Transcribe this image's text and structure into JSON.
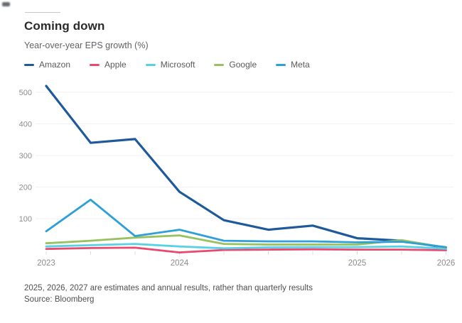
{
  "title": "Coming down",
  "subtitle": "Year-over-year EPS growth (%)",
  "legend": [
    {
      "label": "Amazon",
      "color": "#1e5a9b"
    },
    {
      "label": "Apple",
      "color": "#e9486f"
    },
    {
      "label": "Microsoft",
      "color": "#59d1e5"
    },
    {
      "label": "Google",
      "color": "#97c25f"
    },
    {
      "label": "Meta",
      "color": "#2f9fd9"
    }
  ],
  "footnote": {
    "line1": "2025, 2026, 2027 are estimates and annual results, rather than quarterly results",
    "line2": "Source: Bloomberg"
  },
  "chart_data": {
    "type": "line",
    "title": "Coming down",
    "ylabel": "Year-over-year EPS growth (%)",
    "xlabel": "",
    "grid": "horizontal-only",
    "legend_position": "top",
    "ylim": [
      -20,
      540
    ],
    "y_ticks": [
      100,
      200,
      300,
      400,
      500
    ],
    "x_point_count": 10,
    "x_tick_labels": [
      {
        "index": 0,
        "label": "2023"
      },
      {
        "index": 3,
        "label": "2024"
      },
      {
        "index": 7,
        "label": "2025"
      },
      {
        "index": 9,
        "label": "2026"
      }
    ],
    "series": [
      {
        "name": "Amazon",
        "color": "#1e5a9b",
        "values": [
          520,
          340,
          352,
          185,
          95,
          65,
          78,
          38,
          30,
          8
        ]
      },
      {
        "name": "Apple",
        "color": "#e9486f",
        "values": [
          4,
          7,
          8,
          -7,
          1,
          2,
          3,
          2,
          2,
          0
        ]
      },
      {
        "name": "Microsoft",
        "color": "#59d1e5",
        "values": [
          12,
          16,
          20,
          12,
          6,
          9,
          10,
          10,
          12,
          5
        ]
      },
      {
        "name": "Google",
        "color": "#97c25f",
        "values": [
          22,
          30,
          40,
          47,
          20,
          18,
          18,
          18,
          32,
          8
        ]
      },
      {
        "name": "Meta",
        "color": "#2f9fd9",
        "values": [
          60,
          160,
          45,
          65,
          30,
          28,
          28,
          25,
          27,
          10
        ]
      }
    ]
  }
}
